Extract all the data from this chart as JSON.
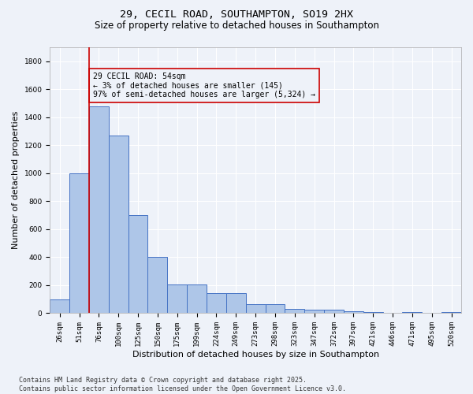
{
  "title_line1": "29, CECIL ROAD, SOUTHAMPTON, SO19 2HX",
  "title_line2": "Size of property relative to detached houses in Southampton",
  "xlabel": "Distribution of detached houses by size in Southampton",
  "ylabel": "Number of detached properties",
  "categories": [
    "26sqm",
    "51sqm",
    "76sqm",
    "100sqm",
    "125sqm",
    "150sqm",
    "175sqm",
    "199sqm",
    "224sqm",
    "249sqm",
    "273sqm",
    "298sqm",
    "323sqm",
    "347sqm",
    "372sqm",
    "397sqm",
    "421sqm",
    "446sqm",
    "471sqm",
    "495sqm",
    "520sqm"
  ],
  "values": [
    100,
    1000,
    1480,
    1270,
    700,
    400,
    205,
    205,
    145,
    145,
    65,
    65,
    30,
    25,
    25,
    15,
    10,
    5,
    10,
    5,
    10
  ],
  "bar_color": "#aec6e8",
  "bar_edge_color": "#4472c4",
  "vline_x": 1.5,
  "vline_color": "#cc0000",
  "annotation_text": "29 CECIL ROAD: 54sqm\n← 3% of detached houses are smaller (145)\n97% of semi-detached houses are larger (5,324) →",
  "annotation_box_color": "#cc0000",
  "ylim": [
    0,
    1900
  ],
  "yticks": [
    0,
    200,
    400,
    600,
    800,
    1000,
    1200,
    1400,
    1600,
    1800
  ],
  "background_color": "#eef2f9",
  "grid_color": "#ffffff",
  "footer_line1": "Contains HM Land Registry data © Crown copyright and database right 2025.",
  "footer_line2": "Contains public sector information licensed under the Open Government Licence v3.0.",
  "title_fontsize": 9.5,
  "subtitle_fontsize": 8.5,
  "axis_label_fontsize": 8,
  "tick_fontsize": 6.5,
  "annotation_fontsize": 7,
  "footer_fontsize": 6
}
